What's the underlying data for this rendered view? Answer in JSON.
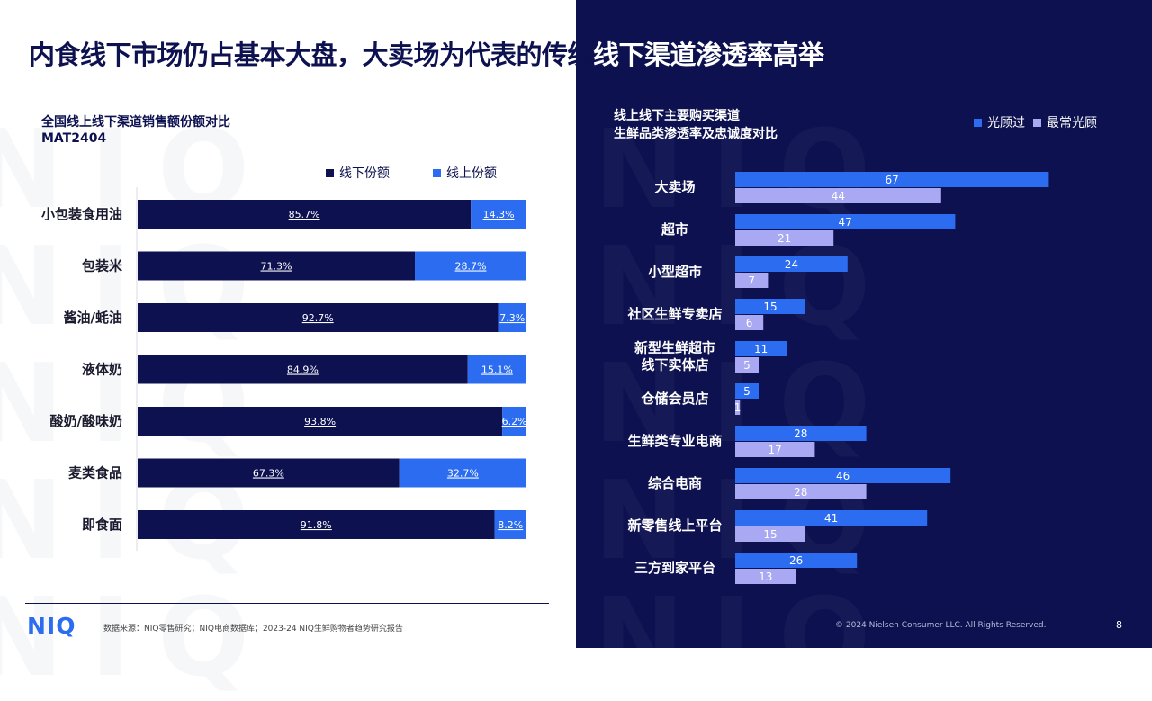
{
  "title_dark": "内食线下市场仍占基本大盘，大卖场为代表的传统",
  "title_light": "线下渠道渗透率高举",
  "watermark": "NIQ",
  "left_subtitle": {
    "line1": "全国线上线下渠道销售额份额对比",
    "line2": "MAT2404"
  },
  "right_subtitle": {
    "line1": "线上线下主要购买渠道",
    "line2": "生鲜品类渗透率及忠诚度对比"
  },
  "colors": {
    "navy": "#0d1150",
    "blue": "#2b6cf0",
    "lavender": "#a9a8f2",
    "pale": "#cfd0f4"
  },
  "chart_data": [
    {
      "type": "bar",
      "orientation": "horizontal-stacked-100",
      "categories": [
        "小包装食用油",
        "包装米",
        "酱油/蚝油",
        "液体奶",
        "酸奶/酸味奶",
        "麦类食品",
        "即食面"
      ],
      "series": [
        {
          "name": "线下份额",
          "values": [
            85.7,
            71.3,
            92.7,
            84.9,
            93.8,
            67.3,
            91.8
          ]
        },
        {
          "name": "线上份额",
          "values": [
            14.3,
            28.7,
            7.3,
            15.1,
            6.2,
            32.7,
            8.2
          ]
        }
      ],
      "value_suffix": "%",
      "legend_position": "top-right"
    },
    {
      "type": "bar",
      "orientation": "horizontal-grouped",
      "categories": [
        "大卖场",
        "超市",
        "小型超市",
        "社区生鲜专卖店",
        "新型生鲜超市\n线下实体店",
        "仓储会员店",
        "生鲜类专业电商",
        "综合电商",
        "新零售线上平台",
        "三方到家平台"
      ],
      "series": [
        {
          "name": "光顾过",
          "values": [
            67,
            47,
            24,
            15,
            11,
            5,
            28,
            46,
            41,
            26
          ]
        },
        {
          "name": "最常光顾",
          "values": [
            44,
            21,
            7,
            6,
            5,
            1,
            17,
            28,
            15,
            13
          ]
        }
      ],
      "legend_position": "top-right"
    }
  ],
  "footer": {
    "logo": "NIQ",
    "source": "数据来源：NIQ零售研究；NIQ电商数据库；2023-24 NIQ生鲜购物者趋势研究报告",
    "copyright": "© 2024 Nielsen Consumer LLC. All Rights Reserved.",
    "page": "8"
  }
}
